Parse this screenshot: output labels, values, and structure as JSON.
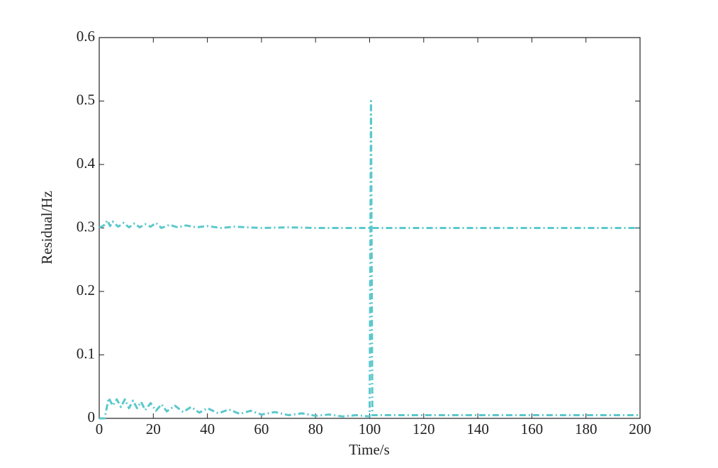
{
  "chart_data": {
    "type": "line",
    "x_label": "Time/s",
    "y_label": "Residual/Hz",
    "xlim": [
      0,
      200
    ],
    "xticks": [
      0,
      20,
      40,
      60,
      80,
      100,
      120,
      140,
      160,
      180,
      200
    ],
    "ylim": [
      0,
      0.6
    ],
    "yticks": [
      0,
      0.1,
      0.2,
      0.3,
      0.4,
      0.5,
      0.6
    ],
    "grid": false,
    "line_style": "dashdot",
    "series": [
      {
        "color": "#5bc8cc",
        "x": [
          0,
          2,
          3.5,
          5,
          6.5,
          8,
          9.5,
          11,
          12.5,
          14,
          15.5,
          17,
          19,
          21,
          23,
          25,
          28,
          31,
          34,
          37,
          40,
          44,
          48,
          52,
          56,
          60,
          65,
          70,
          75,
          80,
          85,
          90,
          95,
          100,
          100.5,
          101,
          200
        ],
        "values": [
          0,
          0,
          0.032,
          0.02,
          0.03,
          0.018,
          0.03,
          0.016,
          0.028,
          0.016,
          0.026,
          0.013,
          0.024,
          0.012,
          0.022,
          0.011,
          0.02,
          0.01,
          0.018,
          0.009,
          0.016,
          0.008,
          0.014,
          0.007,
          0.012,
          0.006,
          0.01,
          0.005,
          0.008,
          0.004,
          0.006,
          0.003,
          0.005,
          0.003,
          0.5,
          0.005,
          0.005
        ]
      },
      {
        "color": "#5bc8cc",
        "x": [
          0,
          2,
          3,
          4,
          5,
          7,
          9,
          11,
          13,
          15,
          17,
          19,
          21,
          23,
          26,
          29,
          32,
          36,
          40,
          45,
          50,
          60,
          70,
          80,
          100,
          200
        ],
        "values": [
          0.3,
          0.305,
          0.312,
          0.303,
          0.31,
          0.302,
          0.308,
          0.301,
          0.307,
          0.301,
          0.306,
          0.302,
          0.308,
          0.3,
          0.305,
          0.301,
          0.304,
          0.301,
          0.303,
          0.3,
          0.302,
          0.3,
          0.301,
          0.3,
          0.3,
          0.3
        ]
      }
    ]
  }
}
